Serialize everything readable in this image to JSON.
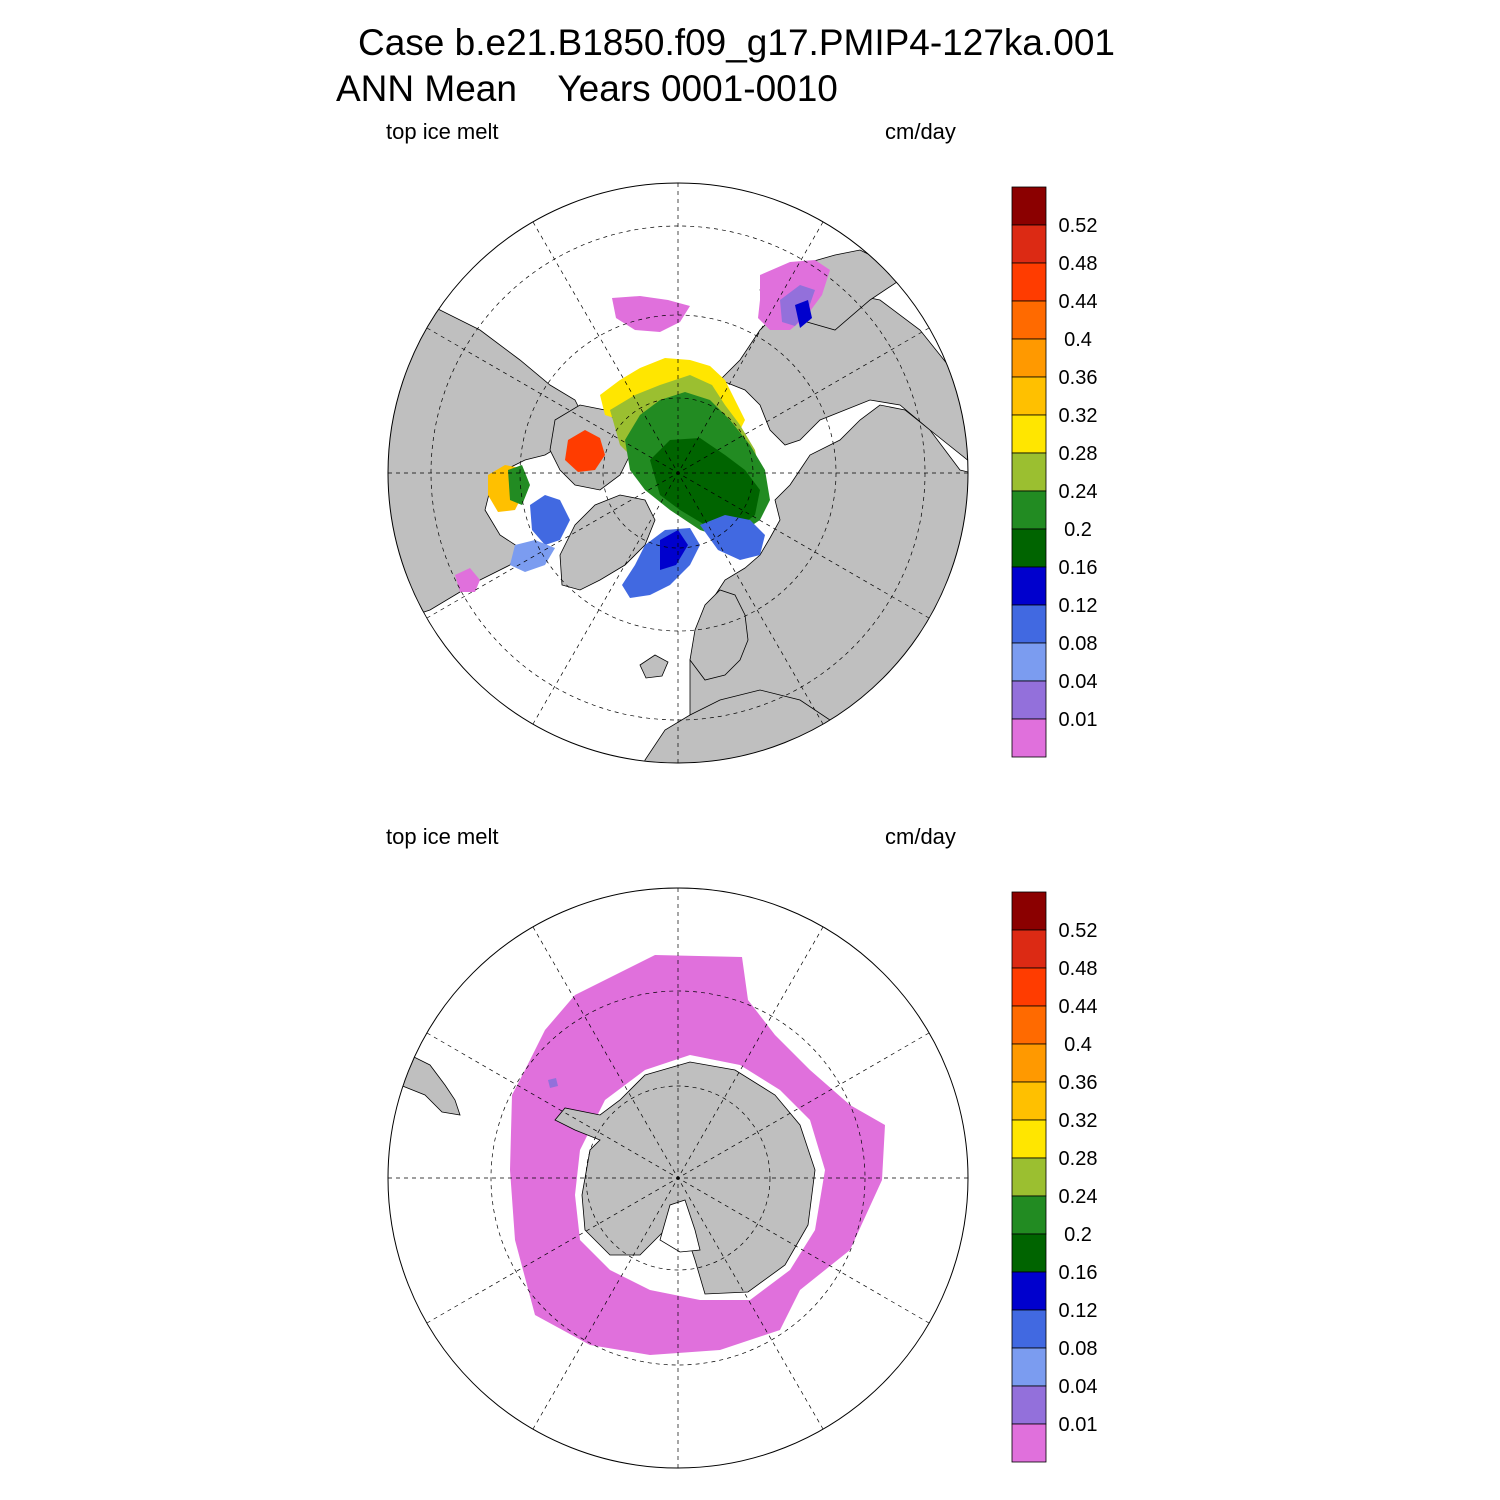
{
  "title": {
    "line1": "Case b.e21.B1850.f09_g17.PMIP4-127ka.001",
    "line2": "ANN Mean    Years 0001-0010"
  },
  "panels": [
    {
      "id": "nh",
      "hemisphere": "north",
      "left_label": "top ice melt",
      "right_label": "cm/day"
    },
    {
      "id": "sh",
      "hemisphere": "south",
      "left_label": "top ice melt",
      "right_label": "cm/day"
    }
  ],
  "colorbar": {
    "labels": [
      "0.52",
      "0.48",
      "0.44",
      "0.4",
      "0.36",
      "0.32",
      "0.28",
      "0.24",
      "0.2",
      "0.16",
      "0.12",
      "0.08",
      "0.04",
      "0.01"
    ],
    "colors_top_to_bottom": [
      "#8b0000",
      "#dc2a14",
      "#ff3c00",
      "#ff6a00",
      "#ff9900",
      "#ffc000",
      "#ffe600",
      "#9bbf30",
      "#228b22",
      "#006400",
      "#0000cd",
      "#4169e1",
      "#7b9cf0",
      "#9370db",
      "#e070dc"
    ]
  },
  "colors": {
    "land": "#bfbfbf",
    "ocean": "#ffffff",
    "grid": "#000000"
  }
}
